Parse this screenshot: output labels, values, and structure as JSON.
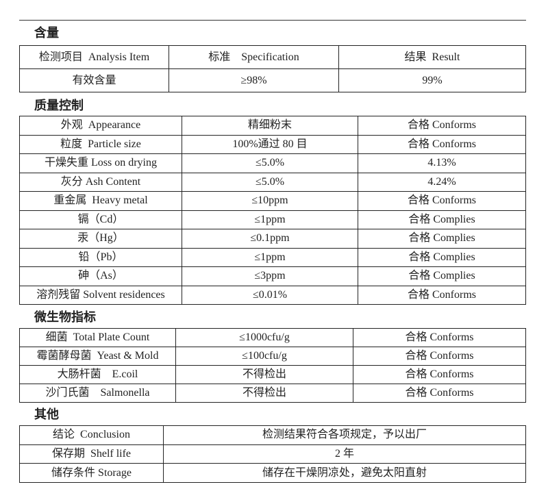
{
  "sections": {
    "content": {
      "title": "含量",
      "header": [
        "检测项目  Analysis Item",
        "标准    Specification",
        "结果  Result"
      ],
      "rows": [
        [
          "有效含量",
          "≥98%",
          "99%"
        ]
      ]
    },
    "quality": {
      "title": "质量控制",
      "rows": [
        [
          "外观  Appearance",
          "精细粉末",
          "合格 Conforms"
        ],
        [
          "粒度  Particle size",
          "100%通过 80 目",
          "合格 Conforms"
        ],
        [
          "干燥失重 Loss on drying",
          "≤5.0%",
          "4.13%"
        ],
        [
          "灰分 Ash Content",
          "≤5.0%",
          "4.24%"
        ],
        [
          "重金属  Heavy metal",
          "≤10ppm",
          "合格 Conforms"
        ],
        [
          "镉（Cd）",
          "≤1ppm",
          "合格 Complies"
        ],
        [
          "汞（Hg）",
          "≤0.1ppm",
          "合格 Complies"
        ],
        [
          "铅（Pb）",
          "≤1ppm",
          "合格 Complies"
        ],
        [
          "砷（As）",
          "≤3ppm",
          "合格 Complies"
        ],
        [
          "溶剂残留 Solvent residences",
          "≤0.01%",
          "合格 Conforms"
        ]
      ]
    },
    "micro": {
      "title": "微生物指标",
      "rows": [
        [
          "细菌  Total Plate Count",
          "≤1000cfu/g",
          "合格 Conforms"
        ],
        [
          "霉菌酵母菌  Yeast & Mold",
          "≤100cfu/g",
          "合格 Conforms"
        ],
        [
          "大肠杆菌    E.coil",
          "不得检出",
          "合格 Conforms"
        ],
        [
          "沙门氏菌    Salmonella",
          "不得检出",
          "合格 Conforms"
        ]
      ]
    },
    "other": {
      "title": "其他",
      "rows": [
        [
          "结论  Conclusion",
          "检测结果符合各项规定，予以出厂"
        ],
        [
          "保存期  Shelf life",
          "2 年"
        ],
        [
          "储存条件 Storage",
          "储存在干燥阴凉处，避免太阳直射"
        ]
      ]
    }
  }
}
